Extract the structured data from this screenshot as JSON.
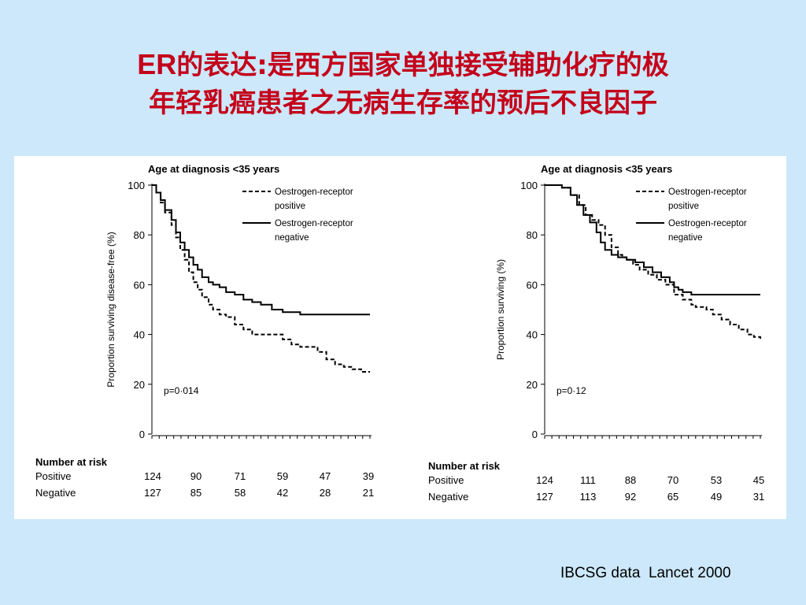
{
  "slide": {
    "title_line1_prefix": "ER",
    "title_line1_rest": "的表达:是西方国家单独接受辅助化疗的极",
    "title_line2": "年轻乳癌患者之无病生存率的预后不良因子",
    "source": "IBCSG data  Lancet 2000"
  },
  "colors": {
    "background": "#cce8fa",
    "title": "#c4001a",
    "panel": "#ffffff",
    "ink": "#000000"
  },
  "chart_data": [
    {
      "type": "line",
      "title": "Age at diagnosis <35 years",
      "ylabel": "Proportion surviving disease-free (%)",
      "ylim": [
        0,
        100
      ],
      "yticks": [
        "0",
        "20",
        "40",
        "60",
        "80",
        "100"
      ],
      "xlim": [
        0,
        100
      ],
      "annotation": "p=0·014",
      "legend_position": "top-right",
      "series": [
        {
          "name": "Oestrogen-receptor positive",
          "style": "dashed",
          "x": [
            0,
            2,
            4,
            6,
            9,
            11,
            13,
            15,
            17,
            19,
            21,
            23,
            26,
            28,
            31,
            34,
            38,
            42,
            46,
            50,
            55,
            60,
            64,
            68,
            72,
            76,
            80,
            84,
            88,
            92,
            96,
            100
          ],
          "y": [
            100,
            97,
            93,
            89,
            84,
            79,
            74,
            70,
            65,
            61,
            58,
            55,
            52,
            50,
            48,
            47,
            44,
            42,
            40,
            40,
            40,
            38,
            36,
            35,
            35,
            33,
            30,
            28,
            27,
            26,
            25,
            25
          ]
        },
        {
          "name": "Oestrogen-receptor negative",
          "style": "solid",
          "x": [
            0,
            2,
            4,
            6,
            9,
            11,
            13,
            15,
            17,
            19,
            21,
            23,
            26,
            28,
            31,
            34,
            38,
            42,
            46,
            50,
            55,
            60,
            64,
            68,
            72,
            76,
            80,
            84,
            88,
            92,
            96,
            100
          ],
          "y": [
            100,
            97,
            94,
            90,
            86,
            81,
            77,
            74,
            71,
            68,
            66,
            63,
            61,
            60,
            59,
            57,
            56,
            54,
            53,
            52,
            50,
            49,
            49,
            48,
            48,
            48,
            48,
            48,
            48,
            48,
            48,
            48
          ]
        }
      ],
      "risk_table": {
        "heading": "Number at risk",
        "rows": [
          {
            "label": "Positive",
            "values": [
              "124",
              "90",
              "71",
              "59",
              "47",
              "39"
            ]
          },
          {
            "label": "Negative",
            "values": [
              "127",
              "85",
              "58",
              "42",
              "28",
              "21"
            ]
          }
        ]
      }
    },
    {
      "type": "line",
      "title": "Age at diagnosis <35 years",
      "ylabel": "Proportion surviving (%)",
      "ylim": [
        0,
        100
      ],
      "yticks": [
        "0",
        "20",
        "40",
        "60",
        "80",
        "100"
      ],
      "xlim": [
        0,
        100
      ],
      "annotation": "p=0·12",
      "legend_position": "top-right",
      "series": [
        {
          "name": "Oestrogen-receptor positive",
          "style": "dashed",
          "x": [
            0,
            4,
            8,
            12,
            16,
            19,
            22,
            25,
            28,
            31,
            34,
            36,
            38,
            41,
            44,
            48,
            52,
            56,
            60,
            64,
            68,
            70,
            72,
            75,
            78,
            82,
            86,
            90,
            94,
            97,
            100
          ],
          "y": [
            100,
            100,
            99,
            96,
            92,
            88,
            86,
            84,
            80,
            75,
            72,
            71,
            70,
            68,
            66,
            64,
            62,
            60,
            56,
            54,
            52,
            51,
            51,
            50,
            48,
            46,
            44,
            42,
            40,
            39,
            38
          ]
        },
        {
          "name": "Oestrogen-receptor negative",
          "style": "solid",
          "x": [
            0,
            4,
            8,
            12,
            15,
            18,
            21,
            24,
            26,
            28,
            31,
            34,
            38,
            42,
            46,
            50,
            54,
            58,
            60,
            62,
            64,
            66,
            68,
            72,
            78,
            84,
            90,
            96,
            100
          ],
          "y": [
            100,
            100,
            99,
            96,
            92,
            88,
            85,
            81,
            77,
            74,
            72,
            71,
            70,
            69,
            67,
            65,
            63,
            61,
            59,
            58,
            57,
            57,
            56,
            56,
            56,
            56,
            56,
            56,
            56
          ]
        }
      ],
      "risk_table": {
        "heading": "Number at risk",
        "rows": [
          {
            "label": "Positive",
            "values": [
              "124",
              "111",
              "88",
              "70",
              "53",
              "45"
            ]
          },
          {
            "label": "Negative",
            "values": [
              "127",
              "113",
              "92",
              "65",
              "49",
              "31"
            ]
          }
        ]
      }
    }
  ]
}
